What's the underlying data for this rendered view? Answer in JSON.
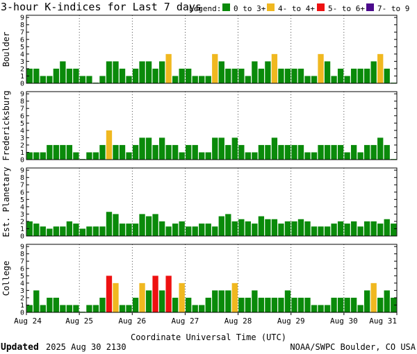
{
  "title": "3-hour K-indices for Last 7 days",
  "legend": {
    "label": "Legend:",
    "items": [
      {
        "label": "0 to 3+",
        "color": "#0a8a0a"
      },
      {
        "label": "4- to 4+",
        "color": "#f0b820"
      },
      {
        "label": "5- to 6+",
        "color": "#ee1111"
      },
      {
        "label": "7- to 9",
        "color": "#4b0a8c"
      }
    ]
  },
  "footer": {
    "updated_label": "Updated",
    "updated_value": "2025 Aug 30 2130",
    "credit": "NOAA/SWPC Boulder, CO USA"
  },
  "chart_data": {
    "type": "bar",
    "xlabel": "Coordinate Universal Time (UTC)",
    "x_ticks": [
      "Aug 24",
      "Aug 25",
      "Aug 26",
      "Aug 27",
      "Aug 28",
      "Aug 29",
      "Aug 30",
      "Aug 31"
    ],
    "y_ticks": [
      "0",
      "1",
      "2",
      "3",
      "4",
      "5",
      "6",
      "7",
      "8",
      "9"
    ],
    "ylim": [
      0,
      9
    ],
    "grid": "dotted vertical at day boundaries",
    "color_thresholds": {
      "green": "<4",
      "yellow": "4",
      "red": "5-6",
      "purple": "7-9"
    },
    "panels": [
      {
        "name": "Boulder",
        "values": [
          2,
          2,
          1,
          1,
          2,
          3,
          2,
          2,
          1,
          1,
          0,
          1,
          3,
          3,
          2,
          1,
          2,
          3,
          3,
          2,
          3,
          4,
          1,
          2,
          2,
          1,
          1,
          1,
          4,
          3,
          2,
          2,
          2,
          1,
          3,
          2,
          3,
          4,
          2,
          2,
          2,
          2,
          1,
          1,
          4,
          3,
          1,
          2,
          1,
          2,
          2,
          2,
          3,
          4,
          2,
          0
        ]
      },
      {
        "name": "Fredericksburg",
        "values": [
          1,
          1,
          1,
          2,
          2,
          2,
          2,
          1,
          0,
          1,
          1,
          2,
          4,
          2,
          2,
          1,
          2,
          3,
          3,
          2,
          3,
          2,
          2,
          1,
          2,
          2,
          1,
          1,
          3,
          3,
          2,
          3,
          2,
          1,
          1,
          2,
          2,
          3,
          2,
          2,
          2,
          2,
          1,
          1,
          2,
          2,
          2,
          2,
          1,
          2,
          1,
          2,
          2,
          3,
          2,
          0
        ]
      },
      {
        "name": "Est. Planetary",
        "values": [
          2,
          1.7,
          1.3,
          1,
          1.3,
          1.3,
          2,
          1.7,
          1,
          1.3,
          1.3,
          1.3,
          3.3,
          3,
          1.7,
          1.7,
          1.7,
          3,
          2.7,
          3,
          2,
          1.3,
          1.7,
          2,
          1.3,
          1.3,
          1.7,
          1.7,
          1.3,
          2.7,
          3,
          2,
          2.3,
          2,
          1.7,
          2.7,
          2.3,
          2.3,
          1.7,
          2,
          2,
          2.3,
          2,
          1.3,
          1.3,
          1.3,
          1.7,
          2,
          1.7,
          2,
          1.3,
          2,
          2,
          1.7,
          2.3,
          1.7
        ]
      },
      {
        "name": "College",
        "values": [
          1,
          3,
          1,
          2,
          2,
          1,
          1,
          1,
          0,
          1,
          1,
          2,
          5,
          4,
          1,
          1,
          2,
          4,
          3,
          5,
          3,
          5,
          2,
          4,
          2,
          1,
          1,
          2,
          3,
          3,
          3,
          4,
          2,
          2,
          3,
          2,
          2,
          2,
          2,
          3,
          2,
          2,
          2,
          1,
          1,
          1,
          2,
          2,
          2,
          2,
          1,
          3,
          4,
          2,
          3,
          2
        ]
      }
    ]
  }
}
